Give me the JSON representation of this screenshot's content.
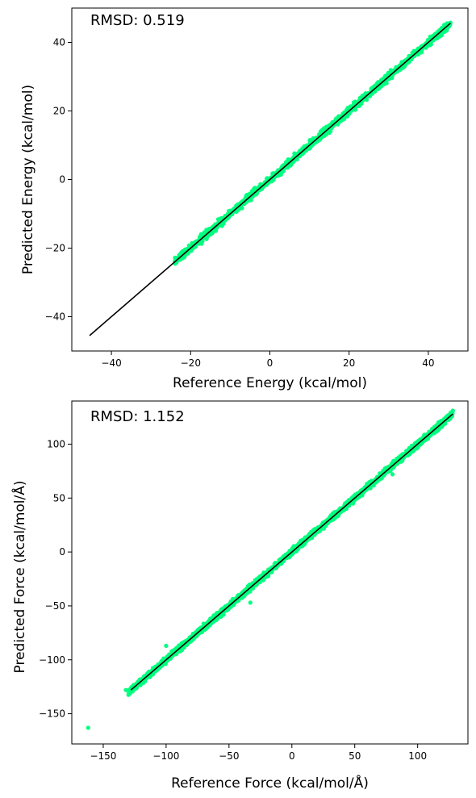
{
  "chart_data": [
    {
      "type": "scatter",
      "id": "energy",
      "xlabel": "Reference Energy (kcal/mol)",
      "ylabel": "Predicted Energy (kcal/mol)",
      "xlim": [
        -50,
        50
      ],
      "ylim": [
        -50,
        50
      ],
      "xticks": [
        -40,
        -20,
        0,
        20,
        40
      ],
      "yticks": [
        -40,
        -20,
        0,
        20,
        40
      ],
      "annotation": "RMSD: 0.519",
      "grid": false,
      "point_color": "#00ff7f",
      "line_color": "#000000",
      "reference_line": {
        "x": [
          -45.5,
          45.6
        ],
        "y": [
          -45.5,
          45.6
        ]
      },
      "point_range": [
        -24,
        45.6
      ],
      "outliers": [],
      "rmsd": 0.519
    },
    {
      "type": "scatter",
      "id": "force",
      "xlabel": "Reference Force (kcal/mol/Å)",
      "ylabel": "Predicted Force (kcal/mol/Å)",
      "xlim": [
        -175,
        140
      ],
      "ylim": [
        -178,
        140
      ],
      "xticks": [
        -150,
        -100,
        -50,
        0,
        50,
        100
      ],
      "yticks": [
        -150,
        -100,
        -50,
        0,
        50,
        100
      ],
      "annotation": "RMSD: 1.152",
      "grid": false,
      "point_color": "#00ff7f",
      "line_color": "#000000",
      "reference_line": {
        "x": [
          -128,
          128
        ],
        "y": [
          -128,
          128
        ]
      },
      "point_range": [
        -130,
        128
      ],
      "outliers": [
        {
          "x": -162,
          "y": -163
        },
        {
          "x": -132,
          "y": -128
        },
        {
          "x": -33,
          "y": -47
        },
        {
          "x": 80,
          "y": 72
        },
        {
          "x": -100,
          "y": -87
        },
        {
          "x": -113,
          "y": -116
        }
      ],
      "rmsd": 1.152
    }
  ]
}
